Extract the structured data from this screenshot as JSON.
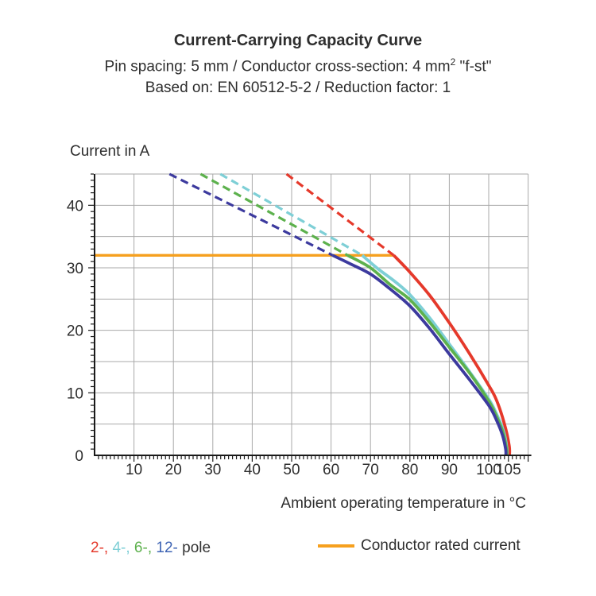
{
  "header": {
    "title": "Current-Carrying Capacity Curve",
    "subtitle_spec_pre": "Pin spacing: 5 mm / Conductor cross-section: 4 mm",
    "subtitle_spec_sup": "2",
    "subtitle_spec_post": " \"f-st\"",
    "subtitle_standard": "Based on: EN 60512-5-2 / Reduction factor: 1"
  },
  "legend": {
    "pole_segments": [
      {
        "text": "2-,",
        "color": "#e5392b"
      },
      {
        "text": " 4-,",
        "color": "#7ecfd6"
      },
      {
        "text": " 6-,",
        "color": "#5db14d"
      },
      {
        "text": " 12-",
        "color": "#3e64b4"
      },
      {
        "text": " pole",
        "color": "#333333"
      }
    ],
    "rated_label": "Conductor rated current",
    "rated_color": "#f6a01e"
  },
  "chart_data": {
    "type": "line",
    "title": "Current-Carrying Capacity Curve",
    "xlabel": "Ambient operating temperature in °C",
    "ylabel": "Current in A",
    "x_range": [
      0,
      110
    ],
    "y_range": [
      0,
      45
    ],
    "x_tick_labels": [
      10,
      20,
      30,
      40,
      50,
      60,
      70,
      80,
      90,
      100,
      105
    ],
    "y_tick_labels": [
      0,
      10,
      20,
      30,
      40
    ],
    "x_grid_step": 10,
    "y_grid_step": 5,
    "grid": true,
    "axis_color": "#1a1a1a",
    "grid_color": "#a9a9a9",
    "rated_current": {
      "label": "Conductor rated current",
      "value_amps": 32,
      "from_temp": 0,
      "to_temp": 75.9,
      "color": "#f6a01e"
    },
    "series": [
      {
        "name": "2-pole",
        "color": "#e5392b",
        "dashed_extrapolation": [
          [
            48.7,
            45
          ],
          [
            75.9,
            32
          ]
        ],
        "solid_curve": [
          [
            75.9,
            32
          ],
          [
            80,
            29.3
          ],
          [
            85,
            25.6
          ],
          [
            90,
            21.2
          ],
          [
            95,
            16.4
          ],
          [
            100,
            11.2
          ],
          [
            102,
            8.8
          ],
          [
            104,
            5.0
          ],
          [
            105.2,
            1.5
          ],
          [
            105.25,
            0
          ]
        ]
      },
      {
        "name": "4-pole",
        "color": "#7ecfd6",
        "dashed_extrapolation": [
          [
            31.9,
            45
          ],
          [
            67.9,
            32
          ]
        ],
        "solid_curve": [
          [
            67.9,
            32
          ],
          [
            72,
            29.8
          ],
          [
            76,
            27.9
          ],
          [
            80,
            25.7
          ],
          [
            85,
            22.0
          ],
          [
            90,
            17.8
          ],
          [
            95,
            13.5
          ],
          [
            100,
            9.0
          ],
          [
            102,
            6.6
          ],
          [
            103.8,
            3.8
          ],
          [
            104.6,
            1.2
          ],
          [
            104.65,
            0
          ]
        ]
      },
      {
        "name": "6-pole",
        "color": "#5db14d",
        "dashed_extrapolation": [
          [
            26.9,
            45
          ],
          [
            64.2,
            32
          ]
        ],
        "solid_curve": [
          [
            64.2,
            32
          ],
          [
            70,
            30.0
          ],
          [
            75,
            27.3
          ],
          [
            80,
            24.9
          ],
          [
            85,
            21.3
          ],
          [
            90,
            17.3
          ],
          [
            95,
            13.3
          ],
          [
            100,
            8.7
          ],
          [
            102,
            6.2
          ],
          [
            103.7,
            3.5
          ],
          [
            104.5,
            1.0
          ],
          [
            104.55,
            0
          ]
        ]
      },
      {
        "name": "12-pole",
        "color": "#3c3a9e",
        "dashed_extrapolation": [
          [
            19.0,
            45
          ],
          [
            60.4,
            32
          ]
        ],
        "solid_curve": [
          [
            60.4,
            32
          ],
          [
            65,
            30.6
          ],
          [
            70,
            29.0
          ],
          [
            75,
            26.6
          ],
          [
            80,
            23.9
          ],
          [
            85,
            20.3
          ],
          [
            90,
            16.2
          ],
          [
            95,
            12.2
          ],
          [
            100,
            8.0
          ],
          [
            102,
            5.6
          ],
          [
            103.5,
            3.2
          ],
          [
            104.3,
            1.0
          ],
          [
            104.35,
            0
          ]
        ]
      }
    ]
  }
}
